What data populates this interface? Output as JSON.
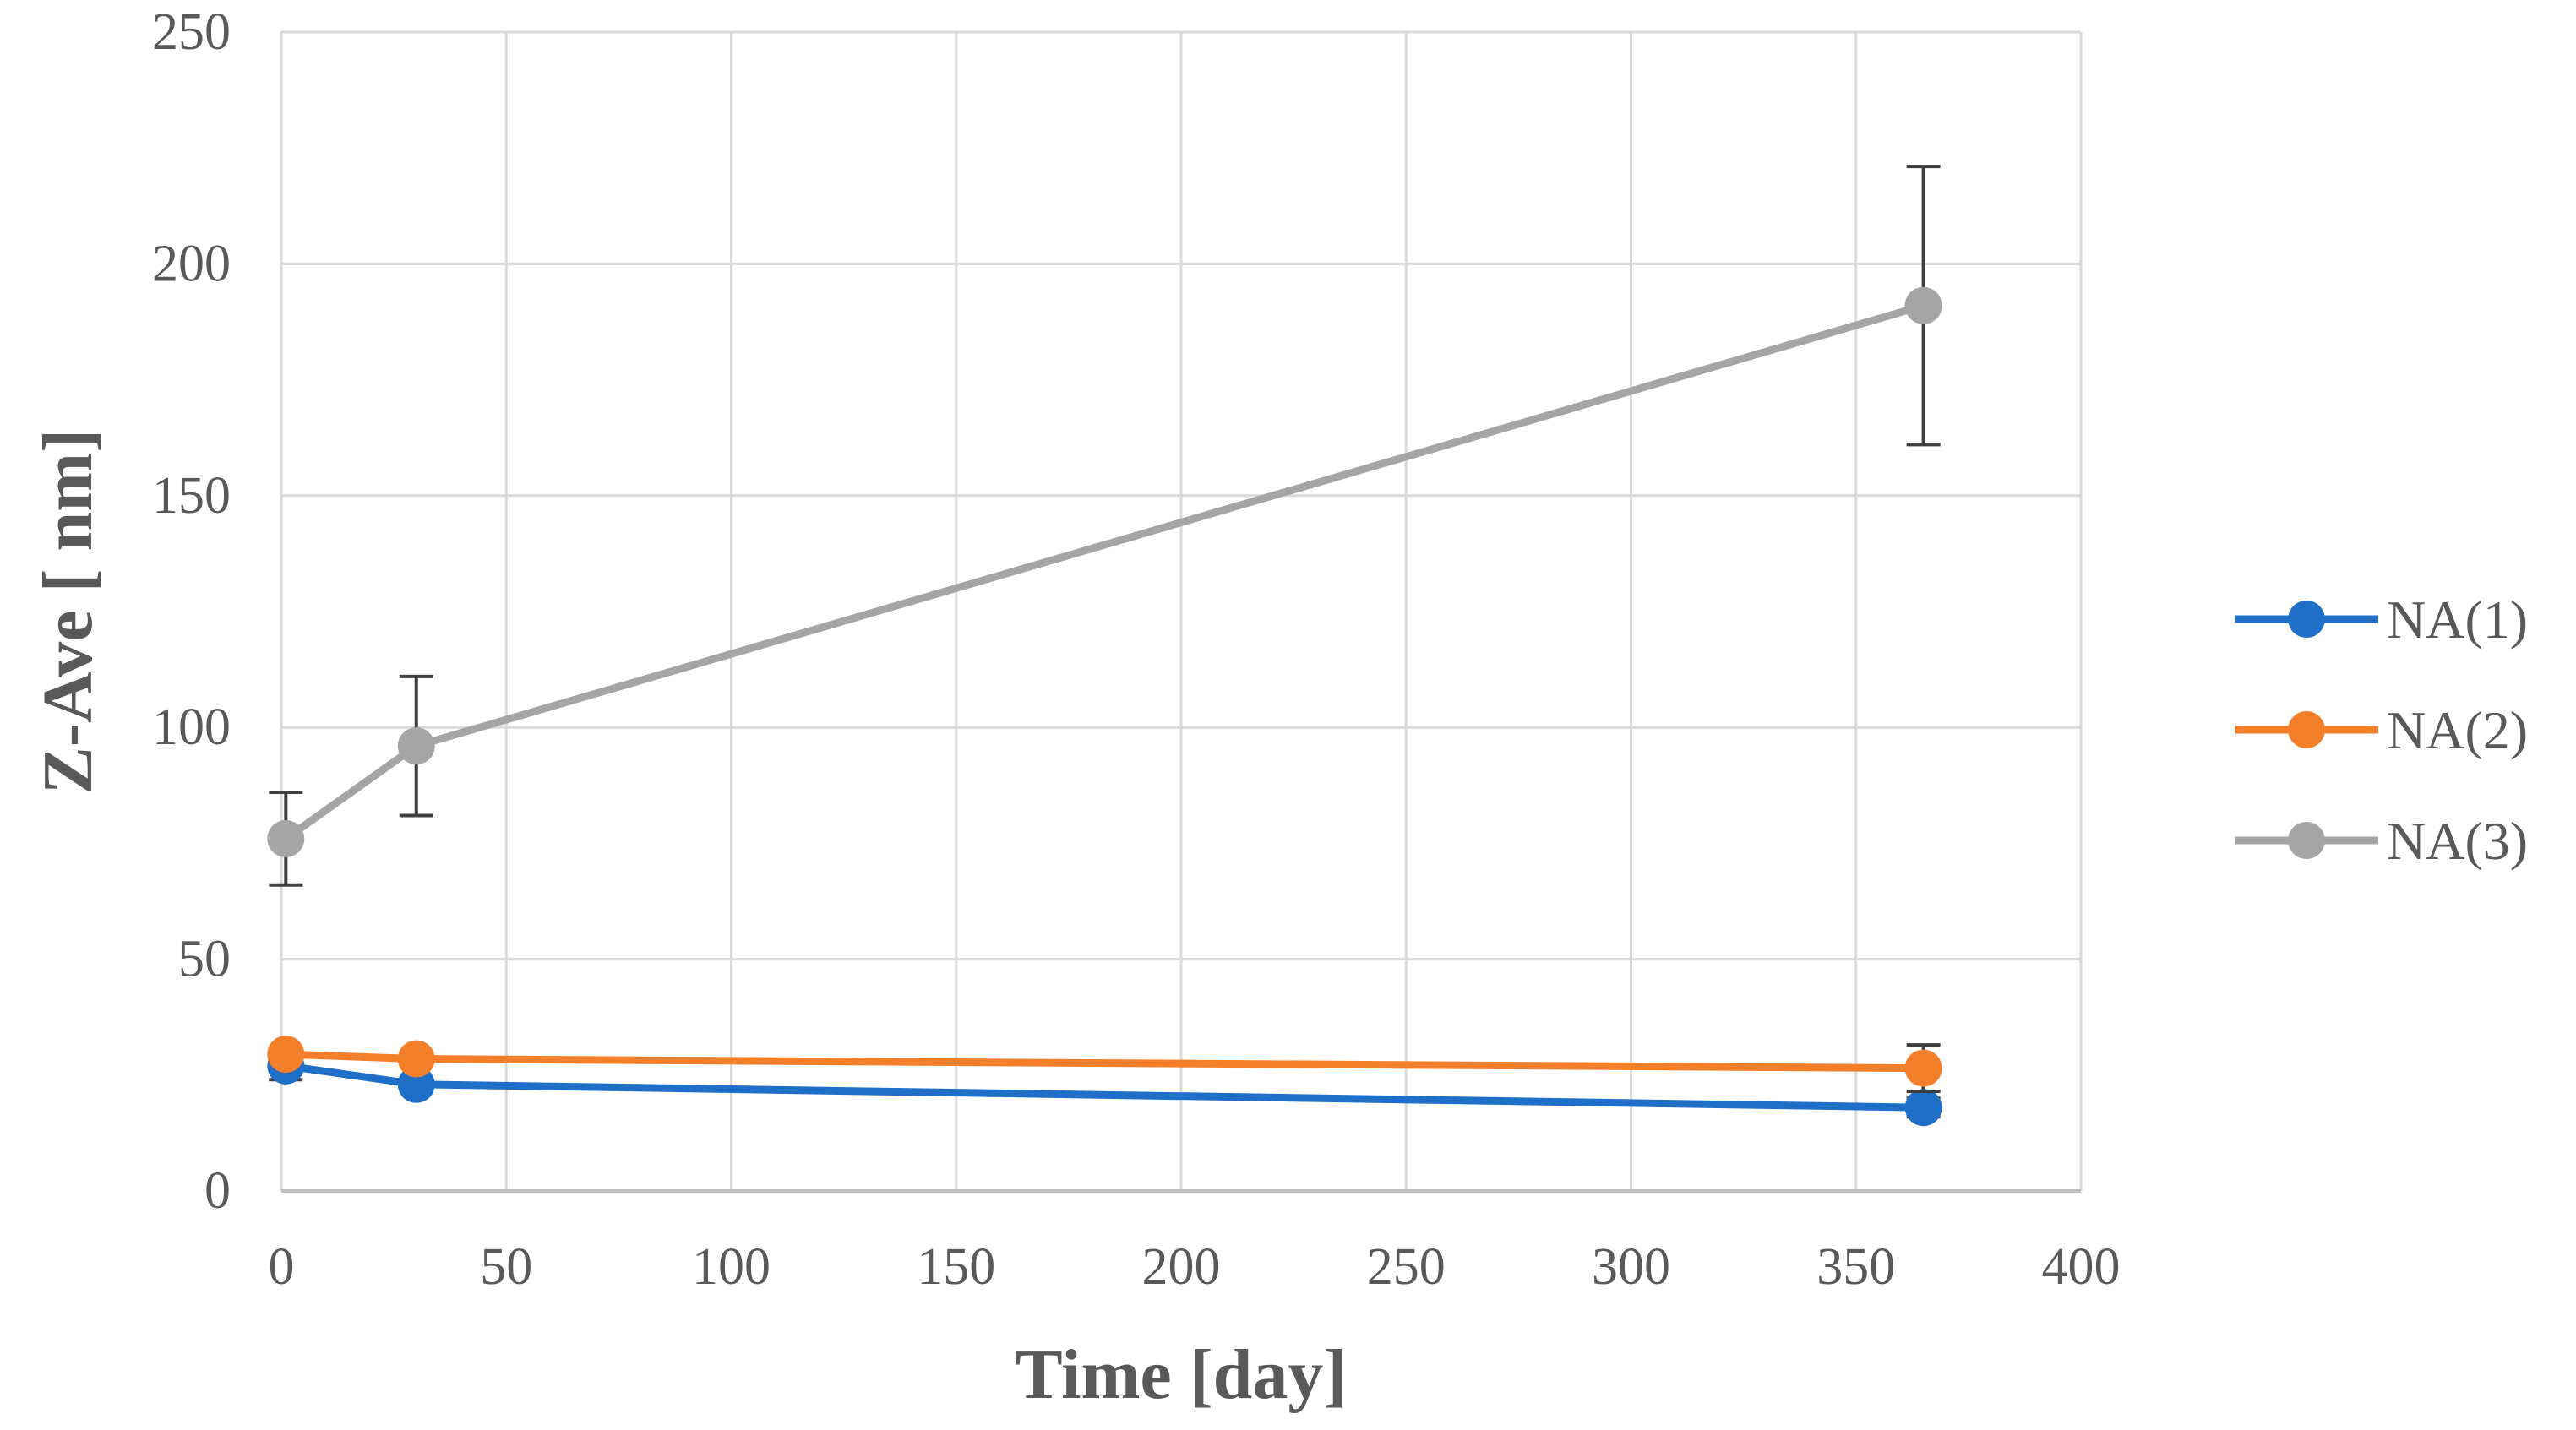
{
  "chart_data": {
    "type": "line",
    "title": "",
    "xlabel": "Time [day]",
    "ylabel": "Z-Ave [ nm]",
    "xlim": [
      0,
      400
    ],
    "ylim": [
      0,
      250
    ],
    "xticks": [
      "0",
      "50",
      "100",
      "150",
      "200",
      "250",
      "300",
      "350",
      "400"
    ],
    "yticks": [
      "0",
      "50",
      "100",
      "150",
      "200",
      "250"
    ],
    "grid": true,
    "legend_position": "right",
    "series": [
      {
        "name": "NA(1)",
        "color": "#1F6FC8",
        "points": [
          {
            "x": 1,
            "y": 27,
            "err": 3
          },
          {
            "x": 30,
            "y": 23,
            "err": 1
          },
          {
            "x": 365,
            "y": 18,
            "err": 2
          }
        ]
      },
      {
        "name": "NA(2)",
        "color": "#F47F2A",
        "points": [
          {
            "x": 1,
            "y": 29.5,
            "err": 1
          },
          {
            "x": 30,
            "y": 28.5,
            "err": 1
          },
          {
            "x": 365,
            "y": 26.5,
            "err": 5
          }
        ]
      },
      {
        "name": "NA(3)",
        "color": "#A5A5A5",
        "points": [
          {
            "x": 1,
            "y": 76,
            "err": 10
          },
          {
            "x": 30,
            "y": 96,
            "err": 15
          },
          {
            "x": 365,
            "y": 191,
            "err": 30
          }
        ]
      }
    ]
  }
}
